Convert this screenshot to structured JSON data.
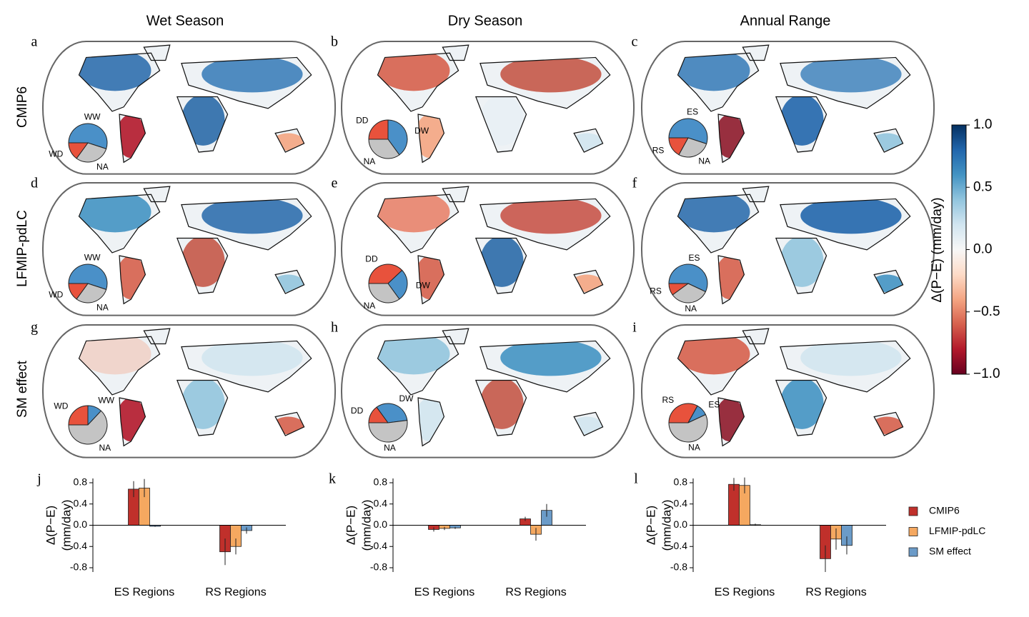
{
  "column_titles": [
    "Wet Season",
    "Dry Season",
    "Annual Range"
  ],
  "row_labels": [
    "CMIP6",
    "LFMIP-pdLC",
    "SM effect"
  ],
  "colorbar": {
    "label": "Δ(P−E) (mm/day)",
    "lim": [
      -1,
      1
    ],
    "ticks": [
      {
        "value": 1,
        "label": "1.0"
      },
      0.5,
      {
        "value": 0,
        "label": "0.0"
      },
      {
        "value": -0.5,
        "label": "−0.5"
      },
      {
        "value": -1,
        "label": "−1.0"
      }
    ],
    "colors": [
      "#67001f",
      "#b2182b",
      "#d6604d",
      "#f4a582",
      "#fddbc7",
      "#f7f7f7",
      "#d1e5f0",
      "#92c5de",
      "#4393c3",
      "#2166ac",
      "#053061"
    ]
  },
  "chart_data": [
    {
      "type": "pie",
      "label": "a",
      "categories": [
        "WW",
        "NA",
        "WD"
      ],
      "values": [
        55,
        30,
        15
      ],
      "colors": [
        "#4a90c8",
        "#c4c4c4",
        "#e8523c"
      ]
    },
    {
      "type": "pie",
      "label": "b",
      "categories": [
        "DD",
        "DW",
        "NA"
      ],
      "values": [
        25,
        40,
        35
      ],
      "colors": [
        "#e8523c",
        "#4a90c8",
        "#c4c4c4"
      ]
    },
    {
      "type": "pie",
      "label": "c",
      "categories": [
        "ES",
        "NA",
        "RS"
      ],
      "values": [
        55,
        28,
        17
      ],
      "colors": [
        "#4a90c8",
        "#c4c4c4",
        "#e8523c"
      ]
    },
    {
      "type": "pie",
      "label": "d",
      "categories": [
        "WW",
        "NA",
        "WD"
      ],
      "values": [
        55,
        30,
        15
      ],
      "colors": [
        "#4a90c8",
        "#c4c4c4",
        "#e8523c"
      ]
    },
    {
      "type": "pie",
      "label": "e",
      "categories": [
        "DD",
        "DW",
        "NA"
      ],
      "values": [
        38,
        27,
        35
      ],
      "colors": [
        "#e8523c",
        "#4a90c8",
        "#c4c4c4"
      ]
    },
    {
      "type": "pie",
      "label": "f",
      "categories": [
        "ES",
        "NA",
        "RS"
      ],
      "values": [
        57,
        33,
        10
      ],
      "colors": [
        "#4a90c8",
        "#c4c4c4",
        "#e8523c"
      ]
    },
    {
      "type": "pie",
      "label": "g",
      "categories": [
        "WD",
        "WW",
        "NA"
      ],
      "values": [
        25,
        12,
        63
      ],
      "colors": [
        "#e8523c",
        "#4a90c8",
        "#c4c4c4"
      ]
    },
    {
      "type": "pie",
      "label": "h",
      "categories": [
        "DD",
        "DW",
        "NA"
      ],
      "values": [
        15,
        33,
        52
      ],
      "colors": [
        "#e8523c",
        "#4a90c8",
        "#c4c4c4"
      ]
    },
    {
      "type": "pie",
      "label": "i",
      "categories": [
        "RS",
        "ES",
        "NA"
      ],
      "values": [
        33,
        10,
        57
      ],
      "colors": [
        "#e8523c",
        "#4a90c8",
        "#c4c4c4"
      ]
    },
    {
      "type": "bar",
      "label": "j",
      "ylabel": [
        "Δ(P−E)",
        "(mm/day)"
      ],
      "categories": [
        "ES Regions",
        "RS Regions"
      ],
      "ylim": [
        -0.8,
        0.8
      ],
      "yticks": [
        0.8,
        0.4,
        {
          "value": 0,
          "label": "0.0"
        },
        -0.4,
        -0.8
      ],
      "series": [
        {
          "name": "CMIP6",
          "color": "#c0302b",
          "values": [
            0.68,
            -0.5
          ],
          "errors": [
            0.15,
            0.25
          ]
        },
        {
          "name": "LFMIP-pdLC",
          "color": "#f5a860",
          "values": [
            0.7,
            -0.4
          ],
          "errors": [
            0.17,
            0.15
          ]
        },
        {
          "name": "SM effect",
          "color": "#6b9bc8",
          "values": [
            -0.02,
            -0.1
          ],
          "errors": [
            0.01,
            0.06
          ]
        }
      ]
    },
    {
      "type": "bar",
      "label": "k",
      "ylabel": [
        "Δ(P−E)",
        "(mm/day)"
      ],
      "categories": [
        "ES Regions",
        "RS Regions"
      ],
      "ylim": [
        -0.8,
        0.8
      ],
      "yticks": [
        0.8,
        0.4,
        {
          "value": 0,
          "label": "0.0"
        },
        -0.4,
        -0.8
      ],
      "series": [
        {
          "name": "CMIP6",
          "color": "#c0302b",
          "values": [
            -0.08,
            0.12
          ],
          "errors": [
            0.04,
            0.04
          ]
        },
        {
          "name": "LFMIP-pdLC",
          "color": "#f5a860",
          "values": [
            -0.06,
            -0.17
          ],
          "errors": [
            0.03,
            0.12
          ]
        },
        {
          "name": "SM effect",
          "color": "#6b9bc8",
          "values": [
            -0.05,
            0.28
          ],
          "errors": [
            0.02,
            0.12
          ]
        }
      ]
    },
    {
      "type": "bar",
      "label": "l",
      "ylabel": [
        "Δ(P−E)",
        "(mm/day)"
      ],
      "categories": [
        "ES Regions",
        "RS Regions"
      ],
      "ylim": [
        -0.8,
        0.8
      ],
      "yticks": [
        0.8,
        0.4,
        {
          "value": 0,
          "label": "0.0"
        },
        -0.4,
        -0.8
      ],
      "series": [
        {
          "name": "CMIP6",
          "color": "#c0302b",
          "values": [
            0.77,
            -0.63
          ],
          "errors": [
            0.12,
            0.25
          ]
        },
        {
          "name": "LFMIP-pdLC",
          "color": "#f5a860",
          "values": [
            0.75,
            -0.26
          ],
          "errors": [
            0.15,
            0.2
          ]
        },
        {
          "name": "SM effect",
          "color": "#6b9bc8",
          "values": [
            0.01,
            -0.38
          ],
          "errors": [
            0.02,
            0.17
          ]
        }
      ]
    }
  ]
}
